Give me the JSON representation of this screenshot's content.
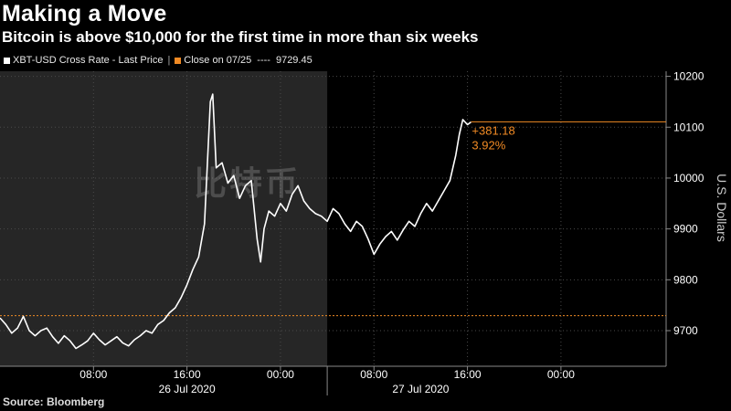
{
  "header": {
    "title": "Making a Move",
    "subtitle": "Bitcoin is above $10,000 for the first time in more than six weeks"
  },
  "legend": {
    "series_label": "XBT-USD Cross Rate - Last Price",
    "close_label": "Close on 07/25",
    "close_dashes": "----",
    "close_value": "9729.45"
  },
  "source": "Source: Bloomberg",
  "watermark": "比特币",
  "colors": {
    "background": "#000000",
    "shade": "#262626",
    "line": "#ffffff",
    "accent": "#f08a24",
    "grid": "#555555"
  },
  "chart_data": {
    "type": "line",
    "title": "Making a Move",
    "subtitle": "Bitcoin is above $10,000 for the first time in more than six weeks",
    "ylabel": "U.S. Dollars",
    "xlabel": "",
    "ylim": [
      9630,
      10210
    ],
    "xlim_hours": [
      0,
      57
    ],
    "y_ticks": [
      9700,
      9800,
      9900,
      10000,
      10100,
      10200
    ],
    "x_ticks": [
      {
        "hour": 8,
        "label": "08:00"
      },
      {
        "hour": 16,
        "label": "16:00"
      },
      {
        "hour": 24,
        "label": "00:00"
      },
      {
        "hour": 32,
        "label": "08:00"
      },
      {
        "hour": 40,
        "label": "16:00"
      },
      {
        "hour": 48,
        "label": "00:00"
      }
    ],
    "date_labels": [
      {
        "hour": 16,
        "label": "26 Jul 2020"
      },
      {
        "hour": 36,
        "label": "27 Jul 2020"
      }
    ],
    "day_divider_hour": 28,
    "grid": true,
    "reference_line": {
      "name": "Close on 07/25",
      "value": 9729.45
    },
    "last_value_line": 10110.6,
    "annotation": {
      "change": "+381.18",
      "percent": "3.92%"
    },
    "series": [
      {
        "name": "XBT-USD Cross Rate - Last Price",
        "points": [
          [
            0,
            9725
          ],
          [
            0.5,
            9712
          ],
          [
            1,
            9695
          ],
          [
            1.5,
            9705
          ],
          [
            2,
            9728
          ],
          [
            2.5,
            9700
          ],
          [
            3,
            9690
          ],
          [
            3.5,
            9700
          ],
          [
            4,
            9705
          ],
          [
            4.5,
            9688
          ],
          [
            5,
            9675
          ],
          [
            5.5,
            9690
          ],
          [
            6,
            9680
          ],
          [
            6.5,
            9665
          ],
          [
            7,
            9672
          ],
          [
            7.5,
            9680
          ],
          [
            8,
            9695
          ],
          [
            8.5,
            9682
          ],
          [
            9,
            9672
          ],
          [
            9.5,
            9680
          ],
          [
            10,
            9688
          ],
          [
            10.5,
            9676
          ],
          [
            11,
            9670
          ],
          [
            11.5,
            9682
          ],
          [
            12,
            9690
          ],
          [
            12.5,
            9700
          ],
          [
            13,
            9695
          ],
          [
            13.5,
            9712
          ],
          [
            14,
            9720
          ],
          [
            14.5,
            9735
          ],
          [
            15,
            9745
          ],
          [
            15.5,
            9765
          ],
          [
            16,
            9790
          ],
          [
            16.5,
            9820
          ],
          [
            17,
            9845
          ],
          [
            17.5,
            9910
          ],
          [
            18,
            10150
          ],
          [
            18.2,
            10165
          ],
          [
            18.5,
            10020
          ],
          [
            19,
            10030
          ],
          [
            19.5,
            9990
          ],
          [
            20,
            10005
          ],
          [
            20.5,
            9960
          ],
          [
            21,
            9985
          ],
          [
            21.5,
            9995
          ],
          [
            22,
            9880
          ],
          [
            22.3,
            9835
          ],
          [
            22.6,
            9900
          ],
          [
            23,
            9935
          ],
          [
            23.5,
            9925
          ],
          [
            24,
            9950
          ],
          [
            24.5,
            9935
          ],
          [
            25,
            9968
          ],
          [
            25.5,
            9985
          ],
          [
            26,
            9955
          ],
          [
            26.5,
            9940
          ],
          [
            27,
            9930
          ],
          [
            27.5,
            9925
          ],
          [
            28,
            9915
          ],
          [
            28.5,
            9940
          ],
          [
            29,
            9930
          ],
          [
            29.5,
            9910
          ],
          [
            30,
            9895
          ],
          [
            30.5,
            9915
          ],
          [
            31,
            9905
          ],
          [
            31.5,
            9880
          ],
          [
            32,
            9850
          ],
          [
            32.5,
            9870
          ],
          [
            33,
            9885
          ],
          [
            33.5,
            9895
          ],
          [
            34,
            9878
          ],
          [
            34.5,
            9898
          ],
          [
            35,
            9915
          ],
          [
            35.5,
            9905
          ],
          [
            36,
            9930
          ],
          [
            36.5,
            9950
          ],
          [
            37,
            9935
          ],
          [
            37.5,
            9955
          ],
          [
            38,
            9975
          ],
          [
            38.5,
            9995
          ],
          [
            39,
            10045
          ],
          [
            39.3,
            10085
          ],
          [
            39.6,
            10115
          ],
          [
            40,
            10105
          ],
          [
            40.3,
            10110
          ]
        ]
      }
    ]
  }
}
